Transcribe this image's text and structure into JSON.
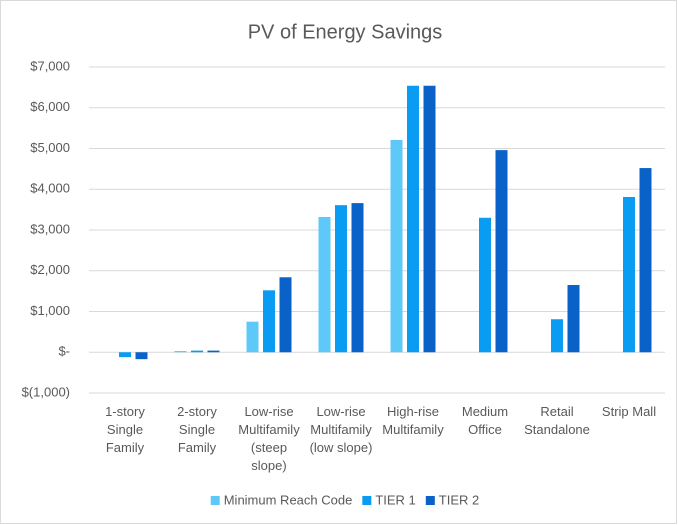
{
  "chart_data": {
    "type": "bar",
    "title": "PV of Energy Savings",
    "categories": [
      "1-story Single Family",
      "2-story Single Family",
      "Low-rise Multifamily (steep slope)",
      "Low-rise Multifamily (low slope)",
      "High-rise Multifamily",
      "Medium Office",
      "Retail Standalone",
      "Strip Mall"
    ],
    "series": [
      {
        "name": "Minimum Reach Code",
        "color": "#5ec8f8",
        "values": [
          null,
          30,
          750,
          3320,
          5210,
          null,
          null,
          null
        ]
      },
      {
        "name": "TIER 1",
        "color": "#0a9cf2",
        "values": [
          -120,
          40,
          1520,
          3610,
          6540,
          3300,
          810,
          3810
        ]
      },
      {
        "name": "TIER 2",
        "color": "#0a62c8",
        "values": [
          -170,
          40,
          1840,
          3660,
          6540,
          4960,
          1650,
          4520
        ]
      }
    ],
    "ylim": [
      -1000,
      7000
    ],
    "yticks": [
      {
        "value": -1000,
        "label": "$(1,000)"
      },
      {
        "value": 0,
        "label": "$-"
      },
      {
        "value": 1000,
        "label": "$1,000"
      },
      {
        "value": 2000,
        "label": "$2,000"
      },
      {
        "value": 3000,
        "label": "$3,000"
      },
      {
        "value": 4000,
        "label": "$4,000"
      },
      {
        "value": 5000,
        "label": "$5,000"
      },
      {
        "value": 6000,
        "label": "$6,000"
      },
      {
        "value": 7000,
        "label": "$7,000"
      }
    ],
    "grid": true,
    "legend": "bottom"
  }
}
